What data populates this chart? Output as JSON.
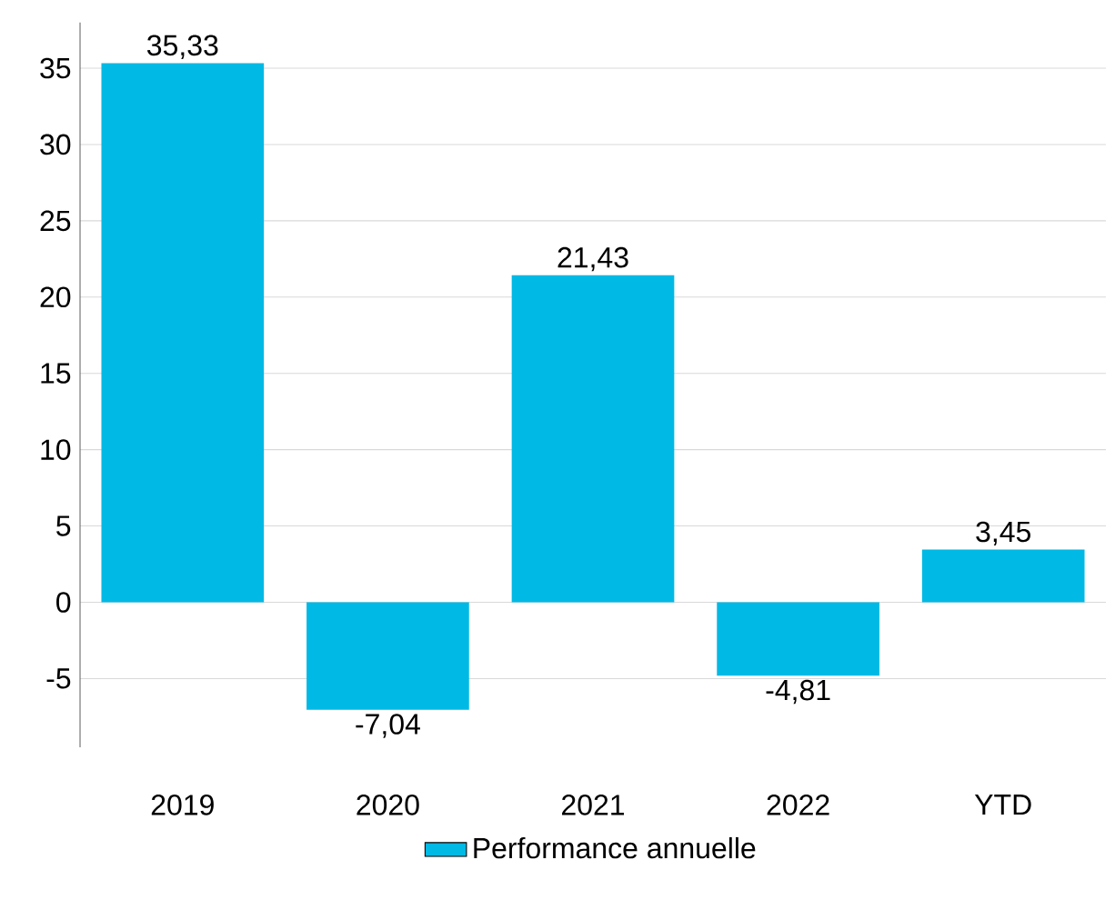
{
  "chart_data": {
    "type": "bar",
    "categories": [
      "2019",
      "2020",
      "2021",
      "2022",
      "YTD"
    ],
    "series": [
      {
        "name": "Performance annuelle",
        "color": "#00b9e4",
        "values": [
          35.33,
          -7.04,
          21.43,
          -4.81,
          3.45
        ],
        "value_labels": [
          "35,33",
          "-7,04",
          "21,43",
          "-4,81",
          "3,45"
        ]
      }
    ],
    "ylim": [
      -9.5,
      38
    ],
    "yticks": [
      -5,
      0,
      5,
      10,
      15,
      20,
      25,
      30,
      35
    ],
    "grid": "y",
    "legend": "bottom"
  }
}
